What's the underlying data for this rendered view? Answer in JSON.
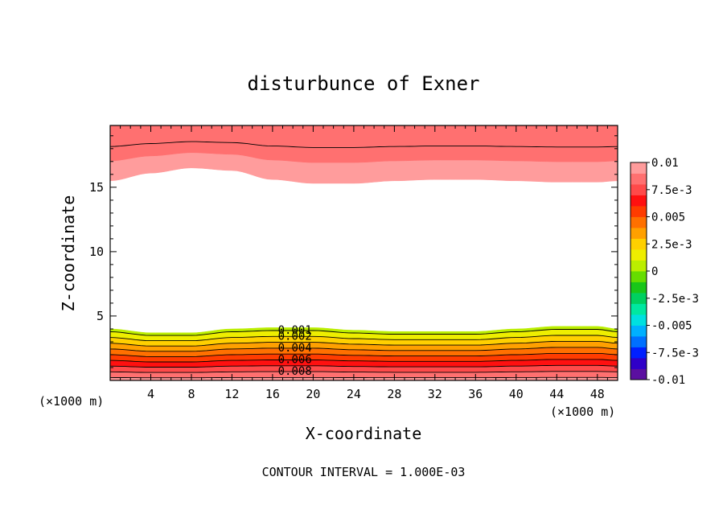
{
  "chart_data": {
    "type": "contour",
    "title": "disturbunce of Exner",
    "xlabel": "X-coordinate",
    "ylabel": "Z-coordinate",
    "x_unit_left": "(×1000 m)",
    "x_unit_right": "(×1000 m)",
    "footer": "CONTOUR INTERVAL = 1.000E-03",
    "xlim": [
      0,
      50
    ],
    "ylim": [
      0,
      19.8
    ],
    "x_ticks": [
      "4",
      "8",
      "12",
      "16",
      "20",
      "24",
      "28",
      "32",
      "36",
      "40",
      "44",
      "48"
    ],
    "y_ticks": [
      "5",
      "10",
      "15"
    ],
    "contour_interval": 0.001,
    "contour_labels": [
      "0.008",
      "0.006",
      "0.004",
      "0.002",
      "0.001"
    ],
    "colorbar": {
      "range": [
        -0.01,
        0.01
      ],
      "labels": [
        "0.01",
        "7.5e-3",
        "0.005",
        "2.5e-3",
        "0",
        "-2.5e-3",
        "-0.005",
        "-7.5e-3",
        "-0.01"
      ],
      "colors": [
        "#5b0fa0",
        "#2f00c8",
        "#0020ff",
        "#0070ff",
        "#00b0ff",
        "#00e0e0",
        "#00e8a0",
        "#00d060",
        "#19c619",
        "#66dd00",
        "#bbee00",
        "#eeee00",
        "#ffd000",
        "#ffa000",
        "#ff7000",
        "#ff3c00",
        "#ff1010",
        "#ff4a4a",
        "#ff7070",
        "#ff9c9c"
      ]
    },
    "lower_band": {
      "x": [
        0,
        4,
        8,
        12,
        16,
        20,
        24,
        28,
        32,
        36,
        40,
        44,
        48,
        50
      ],
      "top": [
        4.0,
        3.7,
        3.7,
        4.0,
        4.1,
        4.1,
        3.9,
        3.8,
        3.8,
        3.8,
        4.0,
        4.2,
        4.2,
        4.0
      ],
      "value_at_top": 0.0005,
      "value_at_bottom": 0.0095
    },
    "upper_band": {
      "x": [
        0,
        4,
        8,
        12,
        16,
        20,
        24,
        28,
        32,
        36,
        40,
        44,
        48,
        50
      ],
      "bottom": [
        15.5,
        16.1,
        16.5,
        16.3,
        15.6,
        15.3,
        15.3,
        15.5,
        15.6,
        15.6,
        15.5,
        15.4,
        15.4,
        15.5
      ],
      "value_at_bottom": 0.0095,
      "value_at_top": 0.0085
    }
  }
}
